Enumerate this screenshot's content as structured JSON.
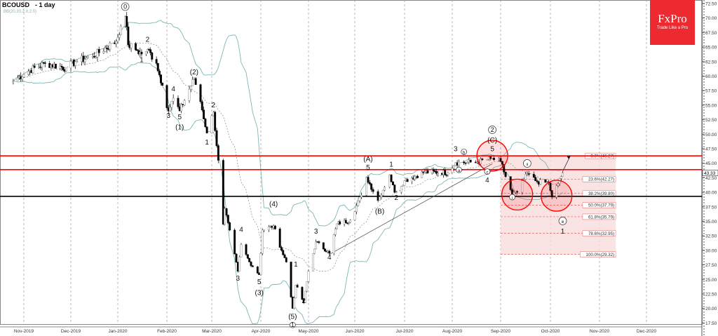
{
  "header": {
    "symbol": "BCOUSD",
    "timeframe": "- 1 day",
    "indicator": "BB(20,20,2.0,2.0)"
  },
  "logo": {
    "brand": "FxPro",
    "tagline": "Trade Like a Pro"
  },
  "colors": {
    "bull": "#ffffff",
    "bear": "#000000",
    "band": "#7fb5b5",
    "resistance": "#ff0000",
    "support": "#000000",
    "fib_fill": "#f7dcdc"
  },
  "chart_data": {
    "type": "candlestick",
    "title": "",
    "ylim": [
      16.5,
      73.5
    ],
    "y_ticks": [
      "72.50",
      "70.00",
      "67.50",
      "65.00",
      "62.50",
      "60.00",
      "57.50",
      "55.00",
      "52.50",
      "50.00",
      "47.50",
      "45.00",
      "42.50",
      "40.00",
      "37.50",
      "35.00",
      "32.50",
      "30.00",
      "27.50",
      "25.00",
      "22.50",
      "20.00",
      "17.50"
    ],
    "x_ticks": [
      {
        "date": "2019-11-01",
        "label": "Nov-2019"
      },
      {
        "date": "2019-12-02",
        "label": "Dec-2019"
      },
      {
        "date": "2020-01-01",
        "label": "Jan-2020"
      },
      {
        "date": "2020-02-03",
        "label": "Feb-2020"
      },
      {
        "date": "2020-03-02",
        "label": "Mar-2020"
      },
      {
        "date": "2020-04-01",
        "label": "Apr-2020"
      },
      {
        "date": "2020-05-01",
        "label": "May-2020"
      },
      {
        "date": "2020-06-01",
        "label": "Jun-2020"
      },
      {
        "date": "2020-07-01",
        "label": "Jul-2020"
      },
      {
        "date": "2020-08-03",
        "label": "Aug-2020"
      },
      {
        "date": "2020-09-01",
        "label": "Sep-2020"
      },
      {
        "date": "2020-10-01",
        "label": "Oct-2020"
      },
      {
        "date": "2020-11-02",
        "label": "Nov-2020"
      },
      {
        "date": "2020-12-01",
        "label": "Dec-2020"
      }
    ],
    "current_price": "43.33",
    "price_path": [
      [
        "2019-10-25",
        59.2
      ],
      [
        "2019-11-05",
        61.0
      ],
      [
        "2019-11-15",
        62.2
      ],
      [
        "2019-11-29",
        61.4
      ],
      [
        "2019-12-05",
        62.5
      ],
      [
        "2019-12-16",
        63.4
      ],
      [
        "2019-12-31",
        66.0
      ],
      [
        "2020-01-03",
        68.6
      ],
      [
        "2020-01-06",
        70.3
      ],
      [
        "2020-01-08",
        65.4
      ],
      [
        "2020-01-14",
        64.4
      ],
      [
        "2020-01-17",
        63.8
      ],
      [
        "2020-01-21",
        64.6
      ],
      [
        "2020-01-27",
        62.2
      ],
      [
        "2020-01-31",
        58.4
      ],
      [
        "2020-02-04",
        54.0
      ],
      [
        "2020-02-07",
        56.2
      ],
      [
        "2020-02-11",
        54.0
      ],
      [
        "2020-02-20",
        59.6
      ],
      [
        "2020-02-24",
        55.6
      ],
      [
        "2020-02-28",
        50.2
      ],
      [
        "2020-03-03",
        53.8
      ],
      [
        "2020-03-06",
        45.5
      ],
      [
        "2020-03-09",
        34.5
      ],
      [
        "2020-03-10",
        37.2
      ],
      [
        "2020-03-18",
        26.4
      ],
      [
        "2020-03-20",
        31.0
      ],
      [
        "2020-03-25",
        28.0
      ],
      [
        "2020-03-31",
        25.8
      ],
      [
        "2020-04-02",
        33.5
      ],
      [
        "2020-04-09",
        34.2
      ],
      [
        "2020-04-14",
        30.0
      ],
      [
        "2020-04-17",
        28.0
      ],
      [
        "2020-04-21",
        20.0
      ],
      [
        "2020-04-23",
        24.0
      ],
      [
        "2020-04-28",
        21.0
      ],
      [
        "2020-05-01",
        26.4
      ],
      [
        "2020-05-06",
        31.5
      ],
      [
        "2020-05-15",
        29.5
      ],
      [
        "2020-05-20",
        34.6
      ],
      [
        "2020-05-29",
        35.2
      ],
      [
        "2020-06-05",
        39.5
      ],
      [
        "2020-06-08",
        42.6
      ],
      [
        "2020-06-15",
        38.6
      ],
      [
        "2020-06-22",
        43.0
      ],
      [
        "2020-06-25",
        40.0
      ],
      [
        "2020-07-01",
        42.0
      ],
      [
        "2020-07-15",
        43.5
      ],
      [
        "2020-07-31",
        43.4
      ],
      [
        "2020-08-05",
        45.1
      ],
      [
        "2020-08-18",
        45.2
      ],
      [
        "2020-08-26",
        45.8
      ],
      [
        "2020-09-01",
        45.3
      ],
      [
        "2020-09-04",
        42.7
      ],
      [
        "2020-09-08",
        39.7
      ],
      [
        "2020-09-11",
        40.0
      ],
      [
        "2020-09-17",
        43.2
      ],
      [
        "2020-09-23",
        41.8
      ],
      [
        "2020-09-30",
        41.6
      ],
      [
        "2020-10-02",
        39.2
      ],
      [
        "2020-10-06",
        41.5
      ],
      [
        "2020-10-09",
        43.33
      ]
    ],
    "horizontal_levels": [
      {
        "price": 46.27,
        "kind": "resistance"
      },
      {
        "price": 43.9,
        "kind": "resistance"
      },
      {
        "price": 39.3,
        "kind": "support"
      }
    ],
    "trendline": {
      "from": [
        "2020-05-15",
        29.3
      ],
      "to": [
        "2020-08-27",
        44.9
      ]
    },
    "arrow": {
      "from": [
        "2020-10-09",
        43.6
      ],
      "to": [
        "2020-10-14",
        46.3
      ]
    },
    "circles": [
      {
        "date": "2020-08-27",
        "price": 46.3
      },
      {
        "date": "2020-09-11",
        "price": 39.6
      },
      {
        "date": "2020-10-05",
        "price": 39.4
      }
    ],
    "fibonacci": {
      "start": "2020-09-01",
      "end": "2020-11-12",
      "levels": [
        {
          "price": 46.27,
          "label": "0.0%(46.27)"
        },
        {
          "price": 42.27,
          "label": "23.6%(42.27)"
        },
        {
          "price": 39.8,
          "label": "38.2%(39.80)"
        },
        {
          "price": 37.79,
          "label": "50.0%(37.79)"
        },
        {
          "price": 35.79,
          "label": "61.8%(35.79)"
        },
        {
          "price": 32.95,
          "label": "78.6%(32.95)"
        },
        {
          "price": 29.32,
          "label": "100.0%(29.32)"
        }
      ]
    },
    "wave_labels": [
      {
        "t": "0",
        "d": "2020-01-06",
        "p": 71.6,
        "c": true
      },
      {
        "t": "1",
        "d": "2020-01-17",
        "p": 62.4
      },
      {
        "t": "2",
        "d": "2020-01-21",
        "p": 65.9
      },
      {
        "t": "3",
        "d": "2020-02-04",
        "p": 52.8
      },
      {
        "t": "4",
        "d": "2020-02-07",
        "p": 57.4
      },
      {
        "t": "5",
        "d": "2020-02-11",
        "p": 52.6
      },
      {
        "t": "(1)",
        "d": "2020-02-11",
        "p": 50.8
      },
      {
        "t": "(2)",
        "d": "2020-02-20",
        "p": 60.3
      },
      {
        "t": "1",
        "d": "2020-02-28",
        "p": 48.2
      },
      {
        "t": "2",
        "d": "2020-03-03",
        "p": 54.6
      },
      {
        "t": "3",
        "d": "2020-03-18",
        "p": 24.8
      },
      {
        "t": "4",
        "d": "2020-03-20",
        "p": 33.2
      },
      {
        "t": "5",
        "d": "2020-03-31",
        "p": 24.2
      },
      {
        "t": "(3)",
        "d": "2020-03-31",
        "p": 22.3
      },
      {
        "t": "(4)",
        "d": "2020-04-09",
        "p": 37.6
      },
      {
        "t": "(5)",
        "d": "2020-04-21",
        "p": 18.2
      },
      {
        "t": "1",
        "d": "2020-04-21",
        "p": 16.8,
        "c": true
      },
      {
        "t": "1",
        "d": "2020-04-23",
        "p": 27.2
      },
      {
        "t": "2",
        "d": "2020-04-28",
        "p": 20.9
      },
      {
        "t": "3",
        "d": "2020-05-06",
        "p": 32.9
      },
      {
        "t": "4",
        "d": "2020-05-15",
        "p": 28.4
      },
      {
        "t": "(A)",
        "d": "2020-06-09",
        "p": 45.3
      },
      {
        "t": "5",
        "d": "2020-06-09",
        "p": 43.9
      },
      {
        "t": "(B)",
        "d": "2020-06-16",
        "p": 36.3
      },
      {
        "t": "1",
        "d": "2020-06-23",
        "p": 44.4
      },
      {
        "t": "2",
        "d": "2020-06-26",
        "p": 38.7
      },
      {
        "t": "3",
        "d": "2020-08-05",
        "p": 47.1
      },
      {
        "t": "b",
        "d": "2020-08-10",
        "p": 46.6,
        "c": true
      },
      {
        "t": "a",
        "d": "2020-08-07",
        "p": 43.5,
        "c": true
      },
      {
        "t": "c",
        "d": "2020-08-24",
        "p": 43.2,
        "c": true
      },
      {
        "t": "4",
        "d": "2020-08-24",
        "p": 41.7
      },
      {
        "t": "2",
        "d": "2020-08-27",
        "p": 50.4,
        "c": true
      },
      {
        "t": "(C)",
        "d": "2020-08-27",
        "p": 48.6
      },
      {
        "t": "5",
        "d": "2020-08-27",
        "p": 47.1
      },
      {
        "t": "i",
        "d": "2020-09-08",
        "p": 38.8,
        "c": true
      },
      {
        "t": "ii",
        "d": "2020-09-17",
        "p": 44.6,
        "c": true
      },
      {
        "t": "iii",
        "d": "2020-10-09",
        "p": 34.7,
        "c": true
      },
      {
        "t": "1",
        "d": "2020-10-09",
        "p": 32.9
      }
    ]
  }
}
